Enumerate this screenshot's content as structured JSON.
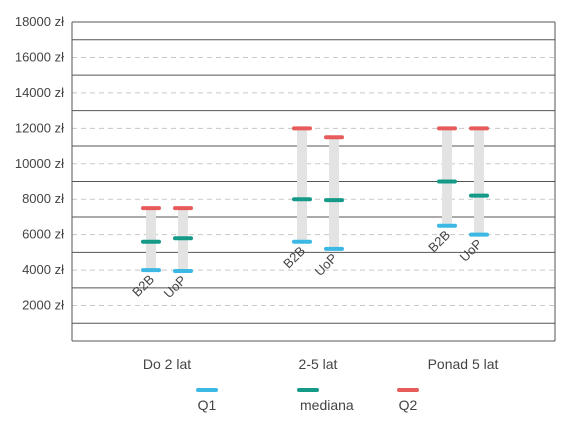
{
  "chart_data": {
    "type": "range",
    "title": "",
    "xlabel": "",
    "ylabel": "",
    "ylim": [
      0,
      18000
    ],
    "y_ticks": [
      2000,
      4000,
      6000,
      8000,
      10000,
      12000,
      14000,
      16000,
      18000
    ],
    "y_tick_labels": [
      "2000 zł",
      "4000 zł",
      "6000 zł",
      "8000 zł",
      "10000 zł",
      "12000 zł",
      "14000 zł",
      "16000 zł",
      "18000 zł"
    ],
    "grid": true,
    "legend_position": "bottom",
    "categories": [
      "Do 2 lat",
      "2-5 lat",
      "Ponad 5 lat"
    ],
    "groups": [
      "B2B",
      "UoP"
    ],
    "data": [
      [
        {
          "group": "B2B",
          "q1": 4000,
          "mediana": 5600,
          "q2": 7500
        },
        {
          "group": "UoP",
          "q1": 3950,
          "mediana": 5800,
          "q2": 7500
        }
      ],
      [
        {
          "group": "B2B",
          "q1": 5600,
          "mediana": 8000,
          "q2": 12000
        },
        {
          "group": "UoP",
          "q1": 5200,
          "mediana": 7950,
          "q2": 11500
        }
      ],
      [
        {
          "group": "B2B",
          "q1": 6500,
          "mediana": 9000,
          "q2": 12000
        },
        {
          "group": "UoP",
          "q1": 6000,
          "mediana": 8200,
          "q2": 12000
        }
      ]
    ],
    "legend": [
      {
        "key": "q1",
        "label": "Q1",
        "color": "#3bb8e3"
      },
      {
        "key": "mediana",
        "label": "mediana",
        "color": "#159a87"
      },
      {
        "key": "q2",
        "label": "Q2",
        "color": "#e85b5b"
      }
    ],
    "colors": {
      "range_bar": "#e3e3e3",
      "grid": "#c8c8c8",
      "frame": "#555555",
      "text": "#444444"
    }
  }
}
